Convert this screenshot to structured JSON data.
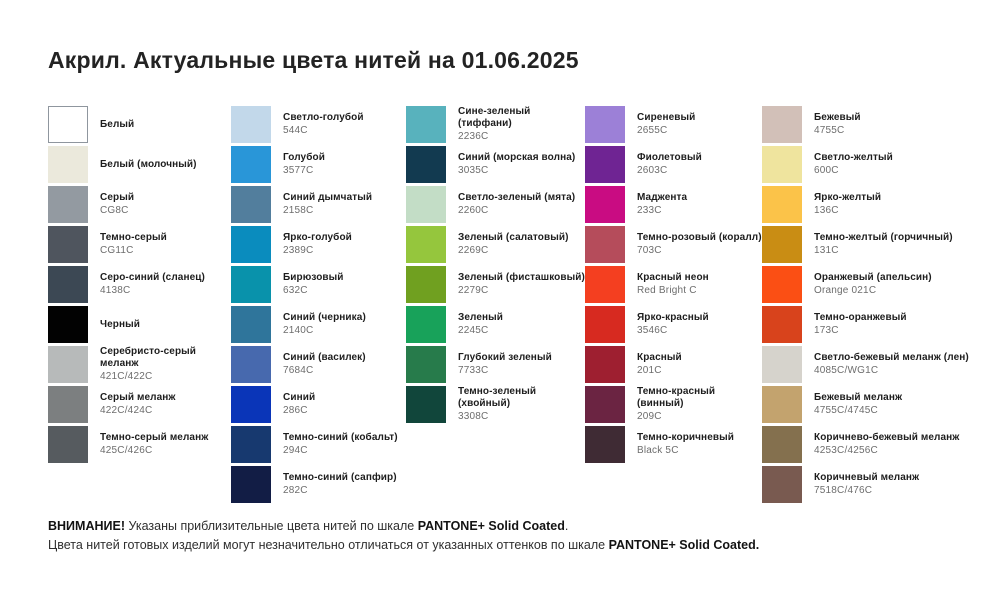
{
  "title": "Акрил. Актуальные цвета нитей на 01.06.2025",
  "columns": [
    {
      "items": [
        {
          "name": "Белый",
          "code": "",
          "color": "#ffffff",
          "border": true
        },
        {
          "name": "Белый (молочный)",
          "code": "",
          "color": "#ebe9dc"
        },
        {
          "name": "Серый",
          "code": "CG8C",
          "color": "#939aa1"
        },
        {
          "name": "Темно-серый",
          "code": "CG11C",
          "color": "#4f555e"
        },
        {
          "name": "Серо-синий (сланец)",
          "code": "4138C",
          "color": "#3c4854"
        },
        {
          "name": "Черный",
          "code": "",
          "color": "#020202"
        },
        {
          "name": "Серебристо-серый меланж",
          "code": "421C/422C",
          "color": "#b7baba"
        },
        {
          "name": "Серый меланж",
          "code": "422C/424C",
          "color": "#7c7f80"
        },
        {
          "name": "Темно-серый меланж",
          "code": "425C/426C",
          "color": "#565b5f"
        }
      ]
    },
    {
      "items": [
        {
          "name": "Светло-голубой",
          "code": "544C",
          "color": "#c2d8ea"
        },
        {
          "name": "Голубой",
          "code": "3577C",
          "color": "#2996d8"
        },
        {
          "name": "Синий дымчатый",
          "code": "2158C",
          "color": "#527e9d"
        },
        {
          "name": "Ярко-голубой",
          "code": "2389C",
          "color": "#0a8cbe"
        },
        {
          "name": "Бирюзовый",
          "code": "632C",
          "color": "#0992ab"
        },
        {
          "name": "Синий (черника)",
          "code": "2140C",
          "color": "#2f759b"
        },
        {
          "name": "Синий (василек)",
          "code": "7684C",
          "color": "#4769ae"
        },
        {
          "name": "Синий",
          "code": "286C",
          "color": "#0a35b8"
        },
        {
          "name": "Темно-синий (кобальт)",
          "code": "294C",
          "color": "#17396f"
        },
        {
          "name": "Темно-синий (сапфир)",
          "code": "282C",
          "color": "#121d45"
        }
      ]
    },
    {
      "items": [
        {
          "name": "Сине-зеленый (тиффани)",
          "code": "2236C",
          "color": "#58b2bd"
        },
        {
          "name": "Синий (морская волна)",
          "code": "3035C",
          "color": "#123a50"
        },
        {
          "name": "Светло-зеленый (мята)",
          "code": "2260C",
          "color": "#c3ddc6"
        },
        {
          "name": "Зеленый (салатовый)",
          "code": "2269C",
          "color": "#95c63d"
        },
        {
          "name": "Зеленый (фисташковый)",
          "code": "2279C",
          "color": "#70a020"
        },
        {
          "name": "Зеленый",
          "code": "2245C",
          "color": "#18a25a"
        },
        {
          "name": "Глубокий зеленый",
          "code": "7733C",
          "color": "#277b4b"
        },
        {
          "name": "Темно-зеленый (хвойный)",
          "code": "3308C",
          "color": "#11463b"
        }
      ]
    },
    {
      "items": [
        {
          "name": "Сиреневый",
          "code": "2655C",
          "color": "#9c80d7"
        },
        {
          "name": "Фиолетовый",
          "code": "2603C",
          "color": "#6f2493"
        },
        {
          "name": "Маджента",
          "code": "233C",
          "color": "#c90c82"
        },
        {
          "name": "Темно-розовый (коралл)",
          "code": "703C",
          "color": "#b54c5b"
        },
        {
          "name": "Красный неон",
          "code": "Red Bright C",
          "color": "#f43f20"
        },
        {
          "name": "Ярко-красный",
          "code": "3546C",
          "color": "#d72a20"
        },
        {
          "name": "Красный",
          "code": "201C",
          "color": "#9e1f30"
        },
        {
          "name": "Темно-красный (винный)",
          "code": "209C",
          "color": "#6b2442"
        },
        {
          "name": "Темно-коричневый",
          "code": "Black 5C",
          "color": "#3f2b34"
        }
      ]
    },
    {
      "items": [
        {
          "name": "Бежевый",
          "code": "4755C",
          "color": "#d2c0b8"
        },
        {
          "name": "Светло-желтый",
          "code": "600C",
          "color": "#efe49e"
        },
        {
          "name": "Ярко-желтый",
          "code": "136C",
          "color": "#fbc349"
        },
        {
          "name": "Темно-желтый (горчичный)",
          "code": "131C",
          "color": "#c98d14"
        },
        {
          "name": "Оранжевый (апельсин)",
          "code": "Orange 021C",
          "color": "#fb4f14"
        },
        {
          "name": "Темно-оранжевый",
          "code": "173C",
          "color": "#d8431c"
        },
        {
          "name": "Светло-бежевый меланж (лен)",
          "code": "4085C/WG1C",
          "color": "#d6d3cc"
        },
        {
          "name": "Бежевый меланж",
          "code": "4755C/4745C",
          "color": "#c3a36e"
        },
        {
          "name": "Коричнево-бежевый меланж",
          "code": "4253C/4256C",
          "color": "#84704e"
        },
        {
          "name": "Коричневый меланж",
          "code": "7518C/476C",
          "color": "#795a50"
        }
      ]
    }
  ],
  "footer": {
    "warning_bold": "ВНИМАНИЕ!",
    "line1_rest": " Указаны приблизительные цвета нитей по шкале ",
    "line1_brand": "PANTONE+ Solid Coated",
    "line1_period": ".",
    "line2_rest": "Цвета нитей готовых изделий могут незначительно отличаться от указанных оттенков по шкале ",
    "line2_brand": "PANTONE+ Solid Coated."
  }
}
